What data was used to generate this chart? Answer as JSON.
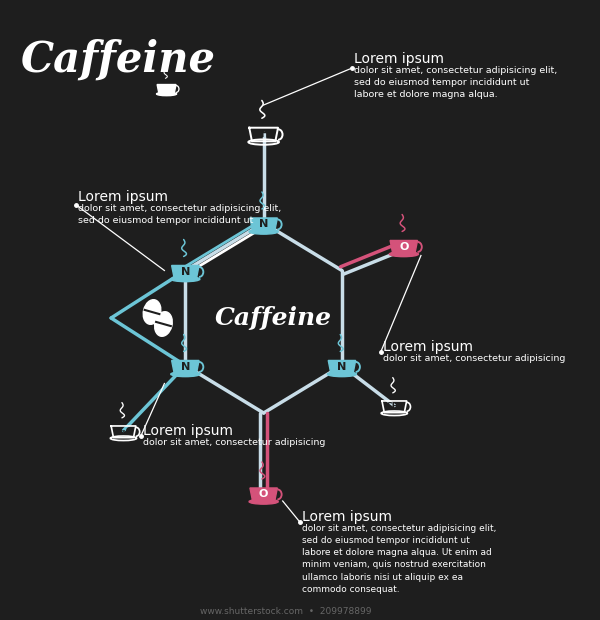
{
  "bg_color": "#1e1e1e",
  "white": "#ffffff",
  "blue": "#6cc5d6",
  "pink": "#d4527a",
  "bond_light": "#c8dde8",
  "title": "Caffeine",
  "center_label": "Caffeine",
  "lorem_title": "Lorem ipsum",
  "lorem1_body": "dolor sit amet, consectetur adipisicing elit,\nsed do eiusmod tempor incididunt ut\nlabore et dolore magna alqua.",
  "lorem2_body": "dolor sit amet, consectetur adipisicing elit,\nsed do eiusmod tempor incididunt ut",
  "lorem3_body": "dolor sit amet, consectetur adipisicing",
  "lorem4_body": "dolor sit amet, consectetur adipisicing",
  "lorem5_body": "dolor sit amet, consectetur adipisicing elit,\nsed do eiusmod tempor incididunt ut\nlabore et dolore magna alqua. Ut enim ad\nminim veniam, quis nostrud exercitation\nullamco laboris nisi ut aliquip ex ea\ncommodo consequat.",
  "shutterstock": "www.shutterstock.com  •  209978899"
}
